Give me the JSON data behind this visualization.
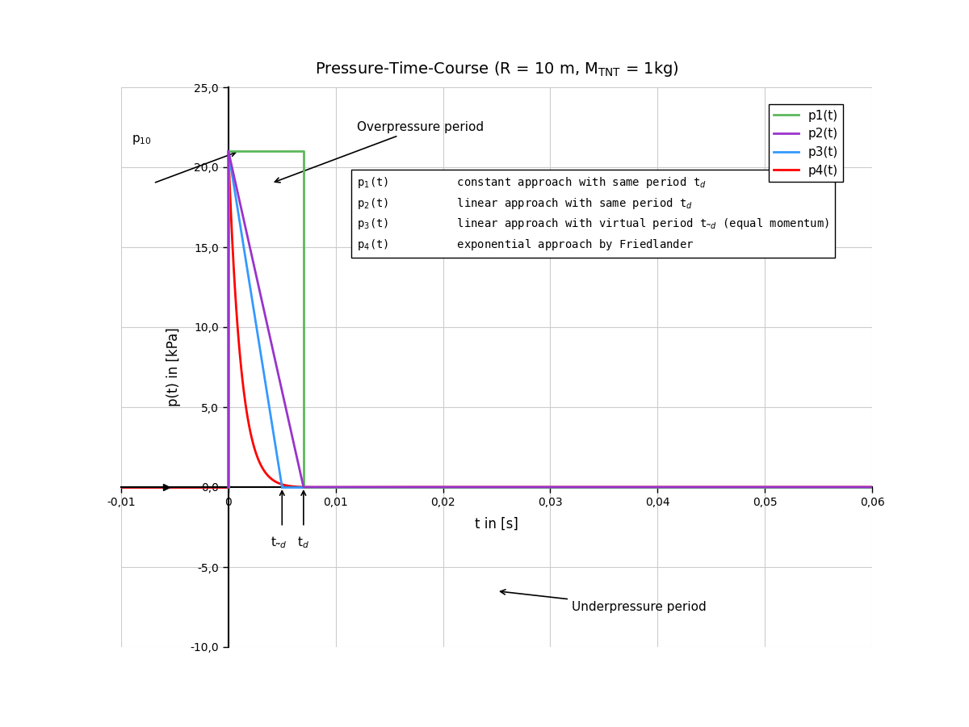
{
  "title": "Pressure-Time-Course (R = 10 m, M$_{TNT}$ = 1kg)",
  "xlabel": "t in [s]",
  "ylabel": "p(t) in [kPa]",
  "xlim": [
    -0.01,
    0.06
  ],
  "ylim": [
    -10.0,
    25.0
  ],
  "xticks": [
    -0.01,
    0,
    0.01,
    0.02,
    0.03,
    0.04,
    0.05,
    0.06
  ],
  "xtick_labels": [
    "-0,01",
    "0",
    "0,01",
    "0,02",
    "0,03",
    "0,04",
    "0,05",
    "0,06"
  ],
  "yticks": [
    -10.0,
    -5.0,
    0.0,
    5.0,
    10.0,
    15.0,
    20.0,
    25.0
  ],
  "ytick_labels": [
    "-10,0",
    "-5,0",
    "0,0",
    "5,0",
    "10,0",
    "15,0",
    "20,0",
    "25,0"
  ],
  "p0": 21.0,
  "td": 0.007,
  "td_virtual": 0.005,
  "b_friedlander": 5.0,
  "color_p1": "#5cb85c",
  "color_p2": "#9933cc",
  "color_p3": "#3399ff",
  "color_p4": "#ff0000",
  "linewidth": 2.0,
  "background_color": "#ffffff",
  "grid_color": "#cccccc",
  "legend_entries": [
    "p1(t)",
    "p2(t)",
    "p3(t)",
    "p4(t)"
  ]
}
